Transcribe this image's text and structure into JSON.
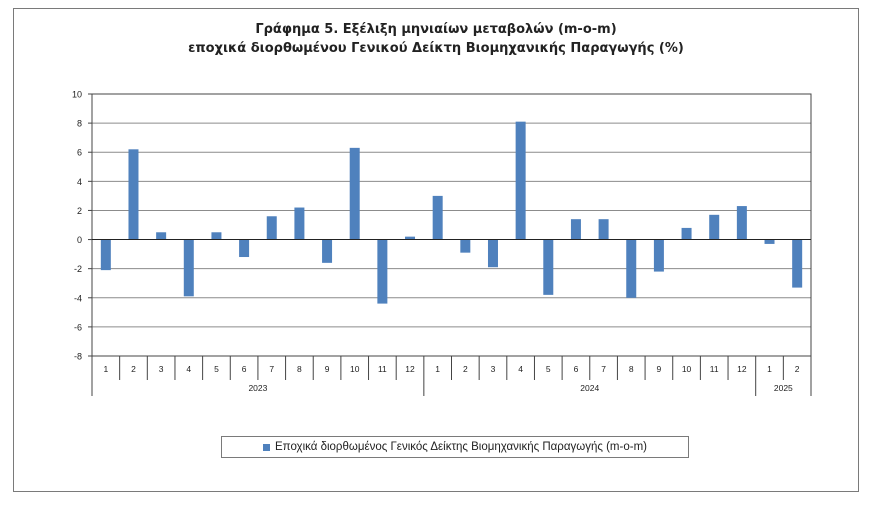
{
  "chart_data": {
    "type": "bar",
    "title_line1": "Γράφημα 5. Εξέλιξη μηνιαίων μεταβολών (m-o-m)",
    "title_line2": "εποχικά διορθωμένου Γενικού Δείκτη Βιομηχανικής Παραγωγής (%)",
    "categories": [
      "1",
      "2",
      "3",
      "4",
      "5",
      "6",
      "7",
      "8",
      "9",
      "10",
      "11",
      "12",
      "1",
      "2",
      "3",
      "4",
      "5",
      "6",
      "7",
      "8",
      "9",
      "10",
      "11",
      "12",
      "1",
      "2"
    ],
    "year_groups": [
      {
        "label": "2023",
        "count": 12
      },
      {
        "label": "2024",
        "count": 12
      },
      {
        "label": "2025",
        "count": 2
      }
    ],
    "series": [
      {
        "name": "Εποχικά διορθωμένος Γενικός Δείκτης Βιομηχανικής Παραγωγής (m-o-m)",
        "values": [
          -2.1,
          6.2,
          0.5,
          -3.9,
          0.5,
          -1.2,
          1.6,
          2.2,
          -1.6,
          6.3,
          -4.4,
          0.2,
          3.0,
          -0.9,
          -1.9,
          8.1,
          -3.8,
          1.4,
          1.4,
          -4.0,
          -2.2,
          0.8,
          1.7,
          2.3,
          -0.3,
          -3.3
        ],
        "color": "#4f81bd"
      }
    ],
    "ylim": [
      -8,
      10
    ],
    "yticks": [
      -8,
      -6,
      -4,
      -2,
      0,
      2,
      4,
      6,
      8,
      10
    ],
    "grid": true,
    "legend_position": "bottom"
  }
}
